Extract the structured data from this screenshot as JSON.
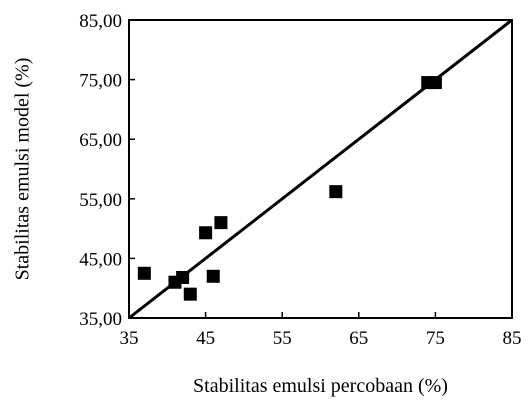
{
  "chart_data": {
    "type": "scatter",
    "title": "",
    "xlabel": "Stabilitas emulsi percobaan (%)",
    "ylabel": "Stabilitas emulsi model (%)",
    "xlim": [
      35,
      85
    ],
    "ylim": [
      35,
      85
    ],
    "x_ticks": [
      "35",
      "45",
      "55",
      "65",
      "75",
      "85"
    ],
    "y_ticks": [
      "35,00",
      "45,00",
      "55,00",
      "65,00",
      "75,00",
      "85,00"
    ],
    "grid": false,
    "legend": "none",
    "series": [
      {
        "marker": "square",
        "color": "#000000",
        "points": [
          {
            "x": 37.0,
            "y": 42.5
          },
          {
            "x": 41.0,
            "y": 41.0
          },
          {
            "x": 42.0,
            "y": 41.8
          },
          {
            "x": 43.0,
            "y": 39.0
          },
          {
            "x": 45.0,
            "y": 49.3
          },
          {
            "x": 46.0,
            "y": 42.0
          },
          {
            "x": 47.0,
            "y": 51.0
          },
          {
            "x": 62.0,
            "y": 56.2
          },
          {
            "x": 74.0,
            "y": 74.5
          },
          {
            "x": 75.0,
            "y": 74.5
          }
        ]
      }
    ],
    "reference_line": {
      "from": [
        35,
        35
      ],
      "to": [
        85,
        85
      ],
      "color": "#000000"
    }
  }
}
